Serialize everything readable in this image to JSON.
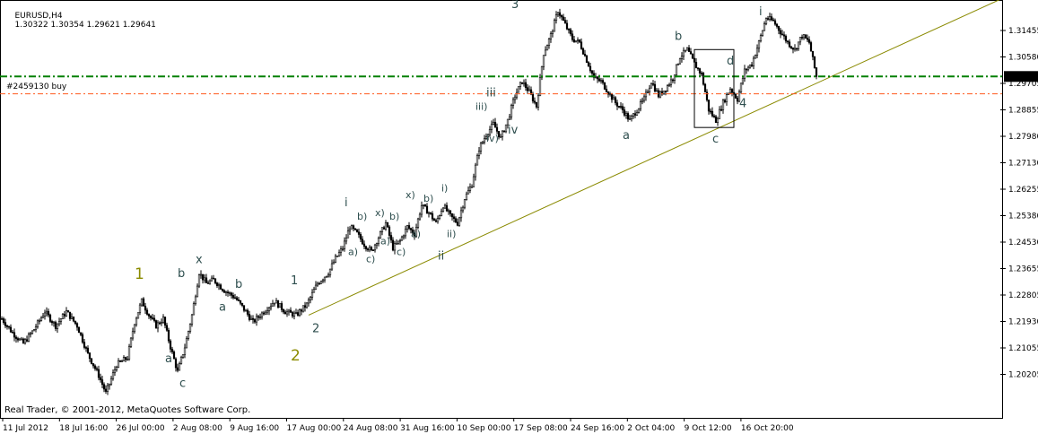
{
  "header": {
    "symbol": "EURUSD,H4",
    "ohlc": "1.30322 1.30354 1.29621 1.29641"
  },
  "footer": {
    "copyright": "Real Trader, © 2001-2012, MetaQuotes Software Corp."
  },
  "order_label": "#2459130 buy",
  "colors": {
    "candle": "#000000",
    "order_line": "#008000",
    "sl_line": "#ff5a1f",
    "trend_line": "#8a8a00",
    "wave_label": "#2f4f4f",
    "major_label": "#8b8b00",
    "price_marker_bg": "#000000",
    "price_marker_fg": "#ffffff"
  },
  "chart_data": {
    "type": "candlestick",
    "timeframe": "H4",
    "ylim": [
      1.2,
      1.318
    ],
    "y_ticks": [
      "1.31455",
      "1.30580",
      "1.29705",
      "1.28855",
      "1.27980",
      "1.27130",
      "1.26255",
      "1.25380",
      "1.24530",
      "1.23655",
      "1.22805",
      "1.21930",
      "1.21055",
      "1.20205"
    ],
    "x_ticks": [
      "11 Jul 2012",
      "18 Jul 16:00",
      "26 Jul 00:00",
      "2 Aug 08:00",
      "9 Aug 16:00",
      "17 Aug 00:00",
      "24 Aug 08:00",
      "31 Aug 16:00",
      "10 Sep 00:00",
      "17 Sep 08:00",
      "24 Sep 16:00",
      "2 Oct 04:00",
      "9 Oct 12:00",
      "16 Oct 20:00"
    ],
    "current_price": "1.29641",
    "order_line_price": 1.2964,
    "sl_line_price": 1.2915,
    "close_path": [
      [
        0,
        1.228
      ],
      [
        6,
        1.224
      ],
      [
        12,
        1.221
      ],
      [
        18,
        1.225
      ],
      [
        24,
        1.23
      ],
      [
        30,
        1.226
      ],
      [
        36,
        1.23
      ],
      [
        42,
        1.226
      ],
      [
        48,
        1.218
      ],
      [
        54,
        1.212
      ],
      [
        58,
        1.207
      ],
      [
        64,
        1.215
      ],
      [
        70,
        1.217
      ],
      [
        74,
        1.227
      ],
      [
        78,
        1.233
      ],
      [
        82,
        1.229
      ],
      [
        86,
        1.226
      ],
      [
        90,
        1.228
      ],
      [
        94,
        1.22
      ],
      [
        98,
        1.213
      ],
      [
        102,
        1.22
      ],
      [
        106,
        1.229
      ],
      [
        110,
        1.241
      ],
      [
        114,
        1.238
      ],
      [
        118,
        1.239
      ],
      [
        124,
        1.236
      ],
      [
        130,
        1.234
      ],
      [
        136,
        1.23
      ],
      [
        140,
        1.227
      ],
      [
        146,
        1.23
      ],
      [
        152,
        1.233
      ],
      [
        158,
        1.23
      ],
      [
        164,
        1.229
      ],
      [
        170,
        1.232
      ],
      [
        176,
        1.238
      ],
      [
        182,
        1.241
      ],
      [
        186,
        1.245
      ],
      [
        190,
        1.248
      ],
      [
        194,
        1.254
      ],
      [
        198,
        1.252
      ],
      [
        202,
        1.249
      ],
      [
        206,
        1.247
      ],
      [
        210,
        1.251
      ],
      [
        214,
        1.255
      ],
      [
        218,
        1.248
      ],
      [
        222,
        1.25
      ],
      [
        226,
        1.254
      ],
      [
        230,
        1.252
      ],
      [
        234,
        1.26
      ],
      [
        238,
        1.258
      ],
      [
        242,
        1.255
      ],
      [
        246,
        1.26
      ],
      [
        250,
        1.257
      ],
      [
        254,
        1.255
      ],
      [
        258,
        1.262
      ],
      [
        262,
        1.266
      ],
      [
        266,
        1.276
      ],
      [
        270,
        1.28
      ],
      [
        274,
        1.283
      ],
      [
        278,
        1.279
      ],
      [
        282,
        1.284
      ],
      [
        286,
        1.291
      ],
      [
        290,
        1.295
      ],
      [
        294,
        1.292
      ],
      [
        298,
        1.288
      ],
      [
        302,
        1.303
      ],
      [
        306,
        1.308
      ],
      [
        310,
        1.315
      ],
      [
        314,
        1.311
      ],
      [
        318,
        1.307
      ],
      [
        322,
        1.306
      ],
      [
        326,
        1.301
      ],
      [
        330,
        1.296
      ],
      [
        334,
        1.295
      ],
      [
        338,
        1.292
      ],
      [
        342,
        1.289
      ],
      [
        346,
        1.287
      ],
      [
        350,
        1.284
      ],
      [
        354,
        1.287
      ],
      [
        358,
        1.29
      ],
      [
        362,
        1.295
      ],
      [
        366,
        1.291
      ],
      [
        370,
        1.293
      ],
      [
        374,
        1.296
      ],
      [
        378,
        1.302
      ],
      [
        382,
        1.304
      ],
      [
        386,
        1.3
      ],
      [
        390,
        1.297
      ],
      [
        394,
        1.287
      ],
      [
        398,
        1.284
      ],
      [
        402,
        1.289
      ],
      [
        406,
        1.293
      ],
      [
        410,
        1.29
      ],
      [
        414,
        1.298
      ],
      [
        418,
        1.3
      ],
      [
        422,
        1.306
      ],
      [
        426,
        1.313
      ],
      [
        430,
        1.312
      ],
      [
        434,
        1.309
      ],
      [
        438,
        1.306
      ],
      [
        442,
        1.304
      ],
      [
        446,
        1.308
      ],
      [
        450,
        1.306
      ],
      [
        454,
        1.2964
      ]
    ],
    "wave_labels": [
      {
        "text": "1",
        "price": 1.2405,
        "bar": 76,
        "major": true
      },
      {
        "text": "2",
        "price": 1.2175,
        "bar": 163,
        "major": true
      },
      {
        "text": "3",
        "price": 1.317,
        "bar": 286,
        "major": false
      },
      {
        "text": "4",
        "price": 1.289,
        "bar": 413,
        "major": false
      },
      {
        "text": "1",
        "price": 1.239,
        "bar": 163,
        "major": false
      },
      {
        "text": "2",
        "price": 1.2255,
        "bar": 175,
        "major": false
      },
      {
        "text": "a",
        "price": 1.2315,
        "bar": 123,
        "major": false
      },
      {
        "text": "b",
        "price": 1.241,
        "bar": 100,
        "major": false
      },
      {
        "text": "x",
        "price": 1.245,
        "bar": 110,
        "major": false
      },
      {
        "text": "a",
        "price": 1.217,
        "bar": 93,
        "major": false
      },
      {
        "text": "c",
        "price": 1.21,
        "bar": 101,
        "major": false
      },
      {
        "text": "b",
        "price": 1.238,
        "bar": 132,
        "major": false
      },
      {
        "text": "i",
        "price": 1.261,
        "bar": 193,
        "major": false
      },
      {
        "text": "ii",
        "price": 1.246,
        "bar": 245,
        "major": false
      },
      {
        "text": "iii",
        "price": 1.292,
        "bar": 272,
        "major": false
      },
      {
        "text": "iv",
        "price": 1.2815,
        "bar": 284,
        "major": false
      },
      {
        "text": "a",
        "price": 1.28,
        "bar": 348,
        "major": false
      },
      {
        "text": "b",
        "price": 1.308,
        "bar": 377,
        "major": false
      },
      {
        "text": "c",
        "price": 1.279,
        "bar": 398,
        "major": false
      },
      {
        "text": "d",
        "price": 1.301,
        "bar": 406,
        "major": false
      },
      {
        "text": "i",
        "price": 1.315,
        "bar": 424,
        "major": false
      }
    ],
    "minor_labels": [
      {
        "text": "a)",
        "price": 1.247,
        "bar": 195
      },
      {
        "text": "b)",
        "price": 1.257,
        "bar": 200
      },
      {
        "text": "c)",
        "price": 1.245,
        "bar": 205
      },
      {
        "text": "x)",
        "price": 1.258,
        "bar": 210
      },
      {
        "text": "a)",
        "price": 1.25,
        "bar": 213
      },
      {
        "text": "b)",
        "price": 1.257,
        "bar": 218
      },
      {
        "text": "c)",
        "price": 1.247,
        "bar": 222
      },
      {
        "text": "a)",
        "price": 1.252,
        "bar": 230
      },
      {
        "text": "x)",
        "price": 1.263,
        "bar": 227
      },
      {
        "text": "b)",
        "price": 1.262,
        "bar": 237
      },
      {
        "text": "i)",
        "price": 1.265,
        "bar": 247
      },
      {
        "text": "ii)",
        "price": 1.252,
        "bar": 250
      },
      {
        "text": "iii)",
        "price": 1.288,
        "bar": 266
      },
      {
        "text": "iv)",
        "price": 1.279,
        "bar": 272
      }
    ],
    "trend_line": {
      "from": [
        171,
        1.229
      ],
      "to": [
        560,
        1.319
      ]
    },
    "box": {
      "bar_from": 386,
      "bar_to": 408,
      "price_top": 1.304,
      "price_bottom": 1.282
    }
  }
}
